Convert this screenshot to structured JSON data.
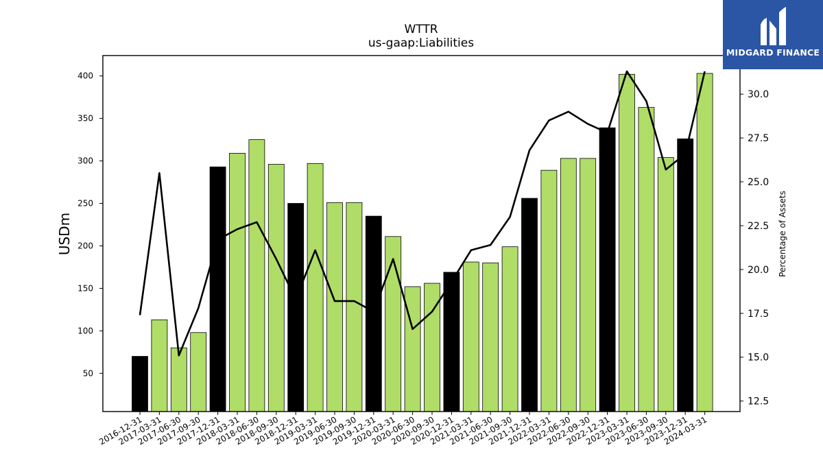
{
  "brand": {
    "name": "MIDGARD FINANCE",
    "color": "#2b55a5"
  },
  "chart_data": {
    "type": "bar",
    "title": "WTTR",
    "subtitle": "us-gaap:Liabilities",
    "ylabel": "USDm",
    "ylabel_right": "Percentage of Assets",
    "ylim": [
      5,
      424
    ],
    "ylim_right": [
      11.9,
      32.2
    ],
    "yticks": [
      50,
      100,
      150,
      200,
      250,
      300,
      350,
      400
    ],
    "yticks_right": [
      "12.5",
      "15.0",
      "17.5",
      "20.0",
      "22.5",
      "25.0",
      "27.5",
      "30.0"
    ],
    "colors": {
      "annual": "#000000",
      "quarter": "#b0dc68",
      "line": "#000000"
    },
    "categories": [
      "2016-12-31",
      "2017-03-31",
      "2017-06-30",
      "2017-09-30",
      "2017-12-31",
      "2018-03-31",
      "2018-06-30",
      "2018-09-30",
      "2018-12-31",
      "2019-03-31",
      "2019-06-30",
      "2019-09-30",
      "2019-12-31",
      "2020-03-31",
      "2020-06-30",
      "2020-09-30",
      "2020-12-31",
      "2021-03-31",
      "2021-06-30",
      "2021-09-30",
      "2021-12-31",
      "2022-03-31",
      "2022-06-30",
      "2022-09-30",
      "2022-12-31",
      "2023-03-31",
      "2023-06-30",
      "2023-09-30",
      "2023-12-31",
      "2024-03-31"
    ],
    "series": [
      {
        "type": "bar",
        "values": [
          70,
          113,
          80,
          98,
          293,
          309,
          325,
          296,
          250,
          297,
          251,
          251,
          235,
          211,
          152,
          156,
          169,
          181,
          180,
          199,
          256,
          289,
          303,
          303,
          339,
          402,
          363,
          304,
          326,
          403
        ]
      },
      {
        "type": "line",
        "axis": "right",
        "values": [
          17.4,
          25.5,
          15.1,
          17.8,
          21.7,
          22.3,
          22.7,
          20.6,
          18.3,
          21.1,
          18.2,
          18.2,
          17.6,
          20.6,
          16.6,
          17.6,
          19.3,
          21.1,
          21.4,
          23.0,
          26.8,
          28.5,
          29.0,
          28.3,
          27.8,
          31.3,
          29.6,
          25.7,
          26.6,
          31.3
        ]
      }
    ]
  }
}
